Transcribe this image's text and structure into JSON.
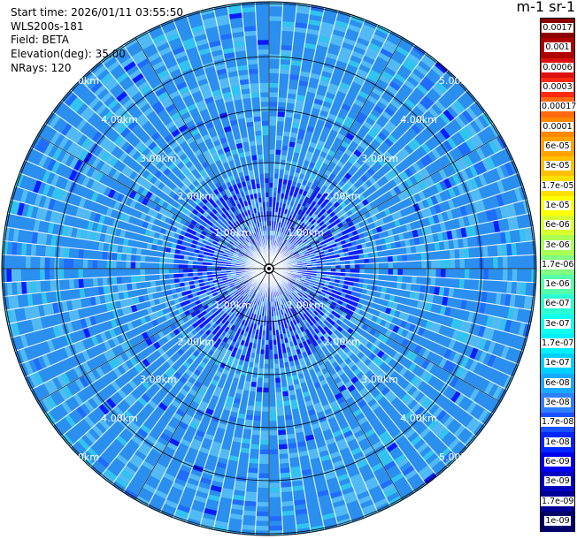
{
  "info": {
    "start_time": "Start time: 2026/01/11 03:55:50",
    "instrument": "WLS200s-181",
    "field": "Field: BETA",
    "elevation": "Elevation(deg): 35.00",
    "nrays": "NRays: 120"
  },
  "colorbar": {
    "unit_label": "m-1 sr-1",
    "levels": [
      {
        "label": "0.0017",
        "color": "#8b0000"
      },
      {
        "label": "0.001",
        "color": "#b00000"
      },
      {
        "label": "0.0006",
        "color": "#dd1010"
      },
      {
        "label": "0.0003",
        "color": "#ff2a10"
      },
      {
        "label": "0.00017",
        "color": "#ff6a10"
      },
      {
        "label": "0.0001",
        "color": "#ff8800"
      },
      {
        "label": "6e-05",
        "color": "#ffa300"
      },
      {
        "label": "3e-05",
        "color": "#ffc000"
      },
      {
        "label": "1.7e-05",
        "color": "#ffe000"
      },
      {
        "label": "1e-05",
        "color": "#ffff00"
      },
      {
        "label": "6e-06",
        "color": "#d8ff30"
      },
      {
        "label": "3e-06",
        "color": "#aaff55"
      },
      {
        "label": "1.7e-06",
        "color": "#80ff80"
      },
      {
        "label": "1e-06",
        "color": "#55ffaa"
      },
      {
        "label": "6e-07",
        "color": "#2affd4"
      },
      {
        "label": "3e-07",
        "color": "#10ffee"
      },
      {
        "label": "1.7e-07",
        "color": "#00f0ff"
      },
      {
        "label": "1e-07",
        "color": "#00d0ff"
      },
      {
        "label": "6e-08",
        "color": "#18aaff"
      },
      {
        "label": "3e-08",
        "color": "#2f80ff"
      },
      {
        "label": "1.7e-08",
        "color": "#1a50ff"
      },
      {
        "label": "1e-08",
        "color": "#0026ff"
      },
      {
        "label": "6e-09",
        "color": "#0000ee"
      },
      {
        "label": "3e-09",
        "color": "#0000c0"
      },
      {
        "label": "1.7e-09",
        "color": "#000095"
      },
      {
        "label": "1e-09",
        "color": "#000068"
      }
    ]
  },
  "range_rings": [
    "1.00km",
    "2.00km",
    "3.00km",
    "4.00km",
    "5.00km"
  ],
  "palette": {
    "background_field": "#2a8fef",
    "deep_blue": "#0a1cff",
    "mid_blue": "#1f6cff",
    "light_blue": "#52baf5",
    "cyan": "#31c4f0",
    "ring_line": "#000000",
    "ray_gap": "#ffffff"
  }
}
